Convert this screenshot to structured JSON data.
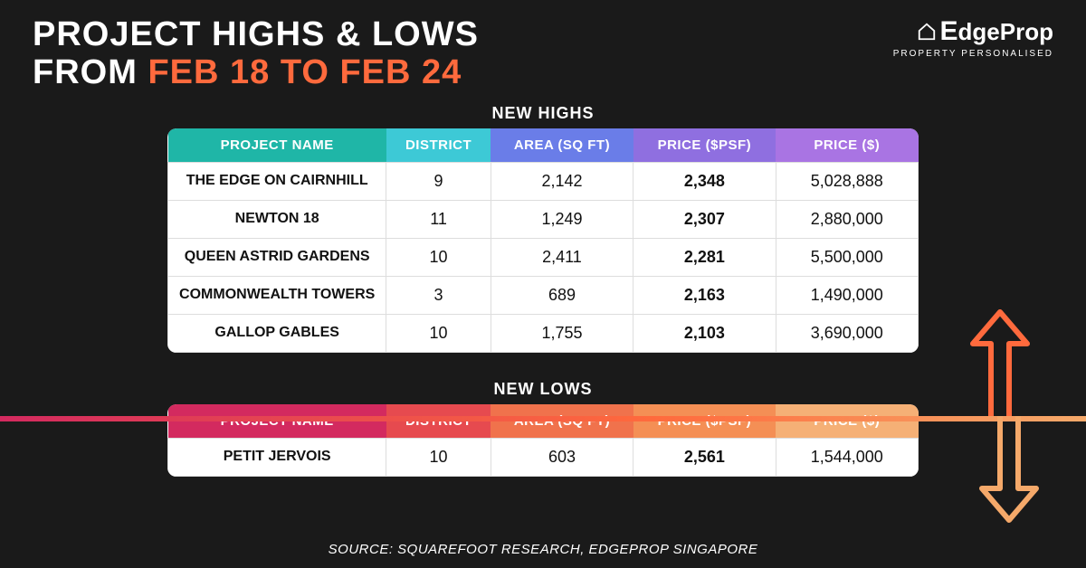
{
  "title": {
    "line1": "PROJECT HIGHS & LOWS",
    "prefix": "FROM ",
    "dates": "FEB 18 TO FEB 24",
    "accent_color": "#ff6a3d"
  },
  "brand": {
    "name": "EdgeProp",
    "tagline": "PROPERTY PERSONALISED"
  },
  "highs": {
    "label": "NEW HIGHS",
    "header_gradient": [
      "#1fb6a7",
      "#3dc9d6",
      "#6a7de8",
      "#8f6fe0",
      "#a974e3"
    ],
    "columns": [
      "PROJECT NAME",
      "DISTRICT",
      "AREA (SQ FT)",
      "PRICE ($PSF)",
      "PRICE ($)"
    ],
    "rows": [
      {
        "name": "THE EDGE ON CAIRNHILL",
        "district": "9",
        "area": "2,142",
        "psf": "2,348",
        "price": "5,028,888"
      },
      {
        "name": "NEWTON 18",
        "district": "11",
        "area": "1,249",
        "psf": "2,307",
        "price": "2,880,000"
      },
      {
        "name": "QUEEN ASTRID GARDENS",
        "district": "10",
        "area": "2,411",
        "psf": "2,281",
        "price": "5,500,000"
      },
      {
        "name": "COMMONWEALTH TOWERS",
        "district": "3",
        "area": "689",
        "psf": "2,163",
        "price": "1,490,000"
      },
      {
        "name": "GALLOP GABLES",
        "district": "10",
        "area": "1,755",
        "psf": "2,103",
        "price": "3,690,000"
      }
    ]
  },
  "lows": {
    "label": "NEW LOWS",
    "header_gradient": [
      "#d32a5f",
      "#e64a4f",
      "#f0724c",
      "#f48f55",
      "#f5b076"
    ],
    "columns": [
      "PROJECT NAME",
      "DISTRICT",
      "AREA (SQ FT)",
      "PRICE ($PSF)",
      "PRICE ($)"
    ],
    "rows": [
      {
        "name": "PETIT JERVOIS",
        "district": "10",
        "area": "603",
        "psf": "2,561",
        "price": "1,544,000"
      }
    ]
  },
  "source": "SOURCE: SQUAREFOOT RESEARCH, EDGEPROP SINGAPORE",
  "arrows": {
    "up_color": "#ff6a3d",
    "down_color": "#f5a96a",
    "stroke_width": 6
  }
}
